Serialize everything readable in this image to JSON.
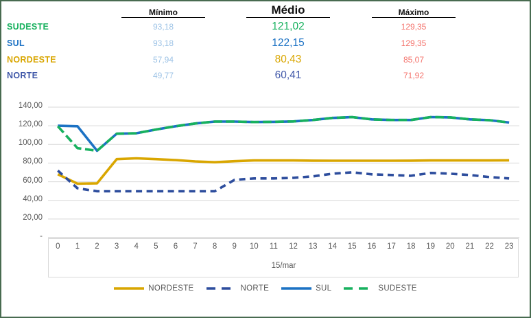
{
  "frame": {
    "border_color": "#486b50"
  },
  "table": {
    "columns": [
      "Mínimo",
      "Médio",
      "Máximo"
    ],
    "min_color": "#9dc3e6",
    "max_color": "#f4736c",
    "rows": [
      {
        "label": "SUDESTE",
        "color": "#17b15e",
        "min": "93,18",
        "avg": "121,02",
        "max": "129,35"
      },
      {
        "label": "SUL",
        "color": "#1c72c4",
        "min": "93,18",
        "avg": "122,15",
        "max": "129,35"
      },
      {
        "label": "NORDESTE",
        "color": "#d9a600",
        "min": "57,94",
        "avg": "80,43",
        "max": "85,07"
      },
      {
        "label": "NORTE",
        "color": "#3f57a8",
        "min": "49,77",
        "avg": "60,41",
        "max": "71,92"
      }
    ]
  },
  "chart_data": {
    "type": "line",
    "x": [
      0,
      1,
      2,
      3,
      4,
      5,
      6,
      7,
      8,
      9,
      10,
      11,
      12,
      13,
      14,
      15,
      16,
      17,
      18,
      19,
      20,
      21,
      22,
      23
    ],
    "x_group_label": "15/mar",
    "xlabel": "",
    "ylabel": "",
    "ylim": [
      0,
      140
    ],
    "y_step": 20,
    "y_ticks": [
      "140,00",
      "120,00",
      "100,00",
      "80,00",
      "60,00",
      "40,00",
      "20,00",
      "-"
    ],
    "grid": true,
    "legend_position": "bottom",
    "gridline_color": "#d9d9d9",
    "axis_text_color": "#595959",
    "series": [
      {
        "name": "NORDESTE",
        "color": "#d9a600",
        "line_style": "solid",
        "values": [
          68.0,
          57.94,
          58.3,
          84.2,
          85.07,
          84.2,
          83.2,
          81.8,
          80.9,
          82.0,
          82.8,
          82.8,
          82.8,
          82.6,
          82.5,
          82.5,
          82.5,
          82.5,
          82.6,
          82.8,
          82.8,
          82.8,
          82.8,
          83.0
        ]
      },
      {
        "name": "NORTE",
        "color": "#2d4d9d",
        "line_style": "dashed",
        "values": [
          71.92,
          53.0,
          49.77,
          49.77,
          49.77,
          49.77,
          49.77,
          49.77,
          49.77,
          62.0,
          63.5,
          63.5,
          64.2,
          65.7,
          68.6,
          70.1,
          67.9,
          67.2,
          66.4,
          69.4,
          68.6,
          67.2,
          65.0,
          63.5
        ]
      },
      {
        "name": "SUL",
        "color": "#1c72c4",
        "line_style": "solid",
        "values": [
          120.0,
          119.5,
          93.18,
          111.5,
          112.0,
          116.0,
          119.5,
          122.5,
          124.5,
          124.5,
          124.0,
          124.2,
          124.7,
          126.2,
          128.4,
          129.35,
          126.9,
          126.2,
          126.2,
          129.35,
          129.0,
          126.9,
          126.0,
          123.5
        ]
      },
      {
        "name": "SUDESTE",
        "color": "#17b15e",
        "line_style": "dashed",
        "values": [
          119.5,
          96.0,
          93.18,
          111.5,
          112.0,
          116.0,
          119.5,
          122.5,
          124.5,
          124.5,
          124.0,
          124.2,
          124.7,
          126.2,
          128.4,
          129.35,
          126.9,
          126.2,
          126.2,
          129.35,
          129.0,
          126.9,
          126.0,
          123.5
        ]
      }
    ]
  }
}
